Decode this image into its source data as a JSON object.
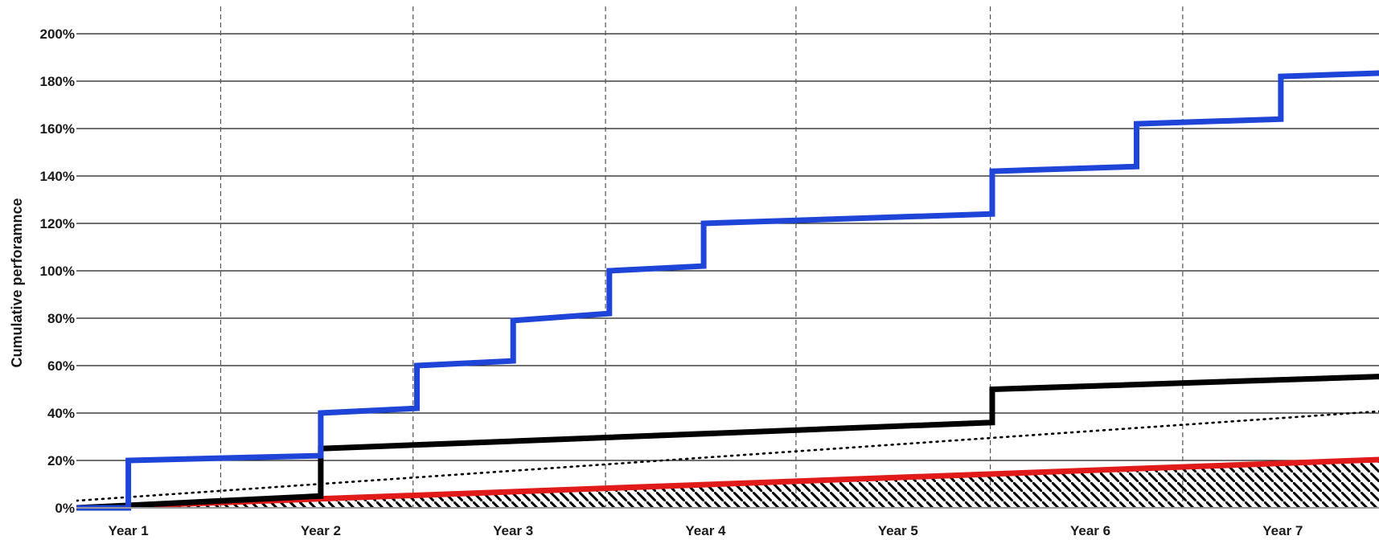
{
  "chart_data": {
    "type": "line",
    "title": "",
    "xlabel": "",
    "ylabel": "Cumulative perforamnce",
    "x_categories": [
      "Year 1",
      "Year 2",
      "Year 3",
      "Year 4",
      "Year 5",
      "Year 6",
      "Year 7"
    ],
    "xlim": [
      0,
      7
    ],
    "ylim": [
      0,
      200
    ],
    "y_ticks": [
      0,
      20,
      40,
      60,
      80,
      100,
      120,
      140,
      160,
      180,
      200
    ],
    "y_tick_labels": [
      "0%",
      "20%",
      "40%",
      "60%",
      "80%",
      "100%",
      "120%",
      "140%",
      "160%",
      "180%",
      "200%"
    ],
    "grid": {
      "horizontal": true,
      "vertical_dashed": true
    },
    "vertical_dashed_x": [
      0.75,
      1.75,
      2.75,
      3.74,
      4.75,
      5.75
    ],
    "legend": "none",
    "series": [
      {
        "style": "step",
        "color": "#1f45d8",
        "x": [
          0,
          0.27,
          0.27,
          1.27,
          1.27,
          1.77,
          1.77,
          2.27,
          2.27,
          2.77,
          2.77,
          3.26,
          3.26,
          4.76,
          4.76,
          5.51,
          5.51,
          6.26,
          6.26,
          7
        ],
        "y": [
          0,
          0,
          20,
          22,
          40,
          42,
          60,
          62,
          79,
          82,
          100,
          102,
          120,
          124,
          142,
          144,
          162,
          164,
          182,
          184
        ]
      },
      {
        "style": "step",
        "color": "#000000",
        "x": [
          0,
          1.27,
          1.27,
          4.76,
          4.76,
          7
        ],
        "y": [
          0,
          5,
          25,
          36,
          50,
          56
        ]
      },
      {
        "style": "dotted",
        "color": "#000000",
        "x": [
          0,
          7
        ],
        "y": [
          3,
          42
        ]
      },
      {
        "style": "line",
        "color": "#e11a1a",
        "x": [
          0,
          7
        ],
        "y": [
          0,
          21
        ]
      },
      {
        "style": "hatched-area",
        "color": "#000000",
        "x": [
          0,
          7
        ],
        "y": [
          0,
          21
        ]
      }
    ]
  }
}
